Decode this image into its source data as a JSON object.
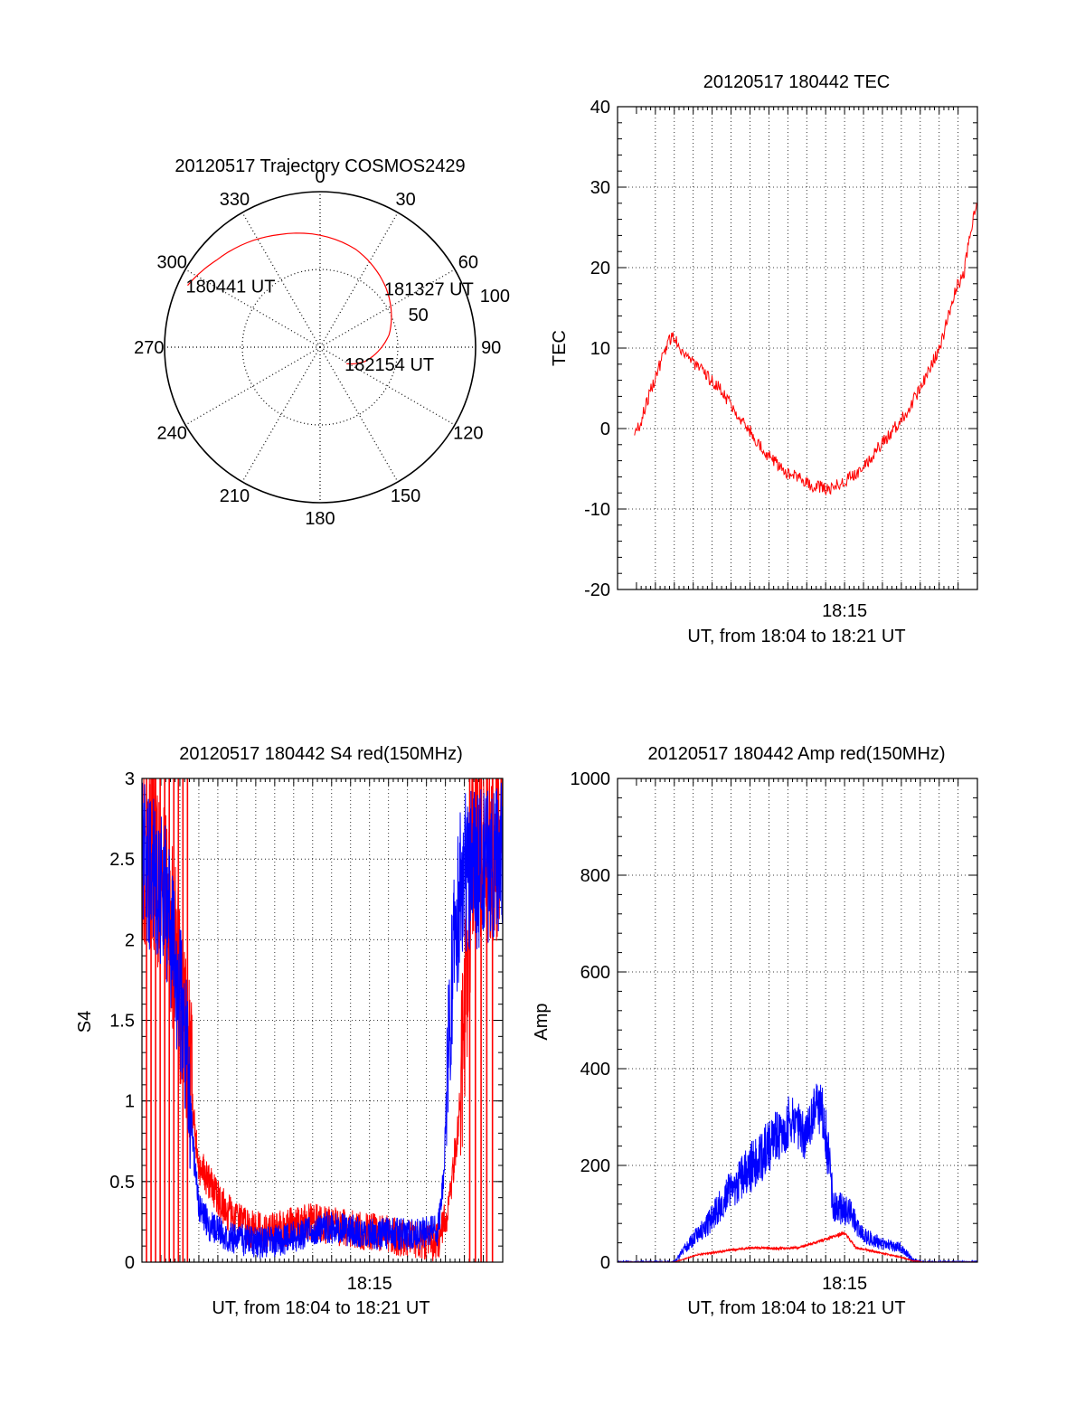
{
  "colors": {
    "red": "#ff0000",
    "blue": "#0000ff",
    "axis": "#000000",
    "grid": "#000000"
  },
  "chart_data": [
    {
      "type": "polar",
      "title": "20120517 Trajectory COSMOS2429",
      "azimuth_labels": [
        "0",
        "30",
        "60",
        "90",
        "120",
        "150",
        "180",
        "210",
        "240",
        "270",
        "300",
        "330"
      ],
      "radial_labels": [
        "50",
        "100"
      ],
      "series": [
        {
          "color": "red",
          "points": [
            [
              -65,
              94
            ],
            [
              -50,
              87
            ],
            [
              -20,
              77
            ],
            [
              20,
              67
            ],
            [
              48,
              57
            ],
            [
              80,
              45
            ],
            [
              108,
              30
            ],
            [
              122,
              20
            ]
          ]
        }
      ],
      "annotations": [
        {
          "text": "180441 UT",
          "az": -65,
          "r": 94
        },
        {
          "text": "181327 UT",
          "az": 48,
          "r": 57
        },
        {
          "text": "182154 UT",
          "az": 122,
          "r": 20
        }
      ]
    },
    {
      "type": "line",
      "title": "20120517 180442 TEC",
      "xlabel": "UT, from 18:04 to 18:21 UT",
      "ylabel": "TEC",
      "xlim": [
        18.05,
        18.367
      ],
      "ylim": [
        -20,
        40
      ],
      "yticks": [
        "-20",
        "-10",
        "0",
        "10",
        "20",
        "30",
        "40"
      ],
      "xtick_labels": [
        {
          "x": 18.25,
          "label": "18:15"
        }
      ],
      "series": [
        {
          "color": "red",
          "points": [
            [
              18.065,
              -0.5
            ],
            [
              18.07,
              0.5
            ],
            [
              18.075,
              3
            ],
            [
              18.08,
              5
            ],
            [
              18.085,
              7
            ],
            [
              18.09,
              9
            ],
            [
              18.095,
              11
            ],
            [
              18.1,
              11.5
            ],
            [
              18.105,
              10
            ],
            [
              18.115,
              8.5
            ],
            [
              18.125,
              7
            ],
            [
              18.14,
              5
            ],
            [
              18.16,
              1
            ],
            [
              18.18,
              -3
            ],
            [
              18.2,
              -5.5
            ],
            [
              18.22,
              -7
            ],
            [
              18.235,
              -7.5
            ],
            [
              18.245,
              -7
            ],
            [
              18.265,
              -5
            ],
            [
              18.285,
              -1.5
            ],
            [
              18.305,
              2
            ],
            [
              18.32,
              6
            ],
            [
              18.335,
              10.5
            ],
            [
              18.345,
              16
            ],
            [
              18.35,
              18
            ],
            [
              18.355,
              19
            ],
            [
              18.36,
              24
            ],
            [
              18.367,
              28.5
            ]
          ],
          "noise": 0.8
        }
      ]
    },
    {
      "type": "line",
      "title": "20120517 180442 S4 red(150MHz)",
      "xlabel": "UT, from 18:04 to 18:21 UT",
      "ylabel": "S4",
      "xlim": [
        18.05,
        18.367
      ],
      "ylim": [
        0,
        3
      ],
      "yticks": [
        "0",
        "0.5",
        "1",
        "1.5",
        "2",
        "2.5",
        "3"
      ],
      "xtick_labels": [
        {
          "x": 18.25,
          "label": "18:15"
        }
      ],
      "series": [
        {
          "color": "red",
          "points": [
            [
              18.05,
              2.6
            ],
            [
              18.07,
              2.3
            ],
            [
              18.09,
              1.4
            ],
            [
              18.095,
              0.9
            ],
            [
              18.1,
              0.6
            ],
            [
              18.11,
              0.5
            ],
            [
              18.12,
              0.35
            ],
            [
              18.14,
              0.22
            ],
            [
              18.16,
              0.18
            ],
            [
              18.18,
              0.22
            ],
            [
              18.2,
              0.25
            ],
            [
              18.22,
              0.22
            ],
            [
              18.24,
              0.2
            ],
            [
              18.26,
              0.18
            ],
            [
              18.28,
              0.15
            ],
            [
              18.31,
              0.12
            ],
            [
              18.32,
              0.35
            ],
            [
              18.33,
              1.0
            ],
            [
              18.34,
              2.5
            ],
            [
              18.367,
              2.6
            ]
          ],
          "noise": 0.12
        },
        {
          "color": "blue",
          "points": [
            [
              18.05,
              2.5
            ],
            [
              18.07,
              2.3
            ],
            [
              18.09,
              1.3
            ],
            [
              18.095,
              0.7
            ],
            [
              18.1,
              0.35
            ],
            [
              18.11,
              0.22
            ],
            [
              18.13,
              0.15
            ],
            [
              18.15,
              0.12
            ],
            [
              18.17,
              0.13
            ],
            [
              18.19,
              0.17
            ],
            [
              18.21,
              0.22
            ],
            [
              18.23,
              0.2
            ],
            [
              18.25,
              0.18
            ],
            [
              18.27,
              0.18
            ],
            [
              18.29,
              0.17
            ],
            [
              18.31,
              0.2
            ],
            [
              18.315,
              0.5
            ],
            [
              18.32,
              1.5
            ],
            [
              18.33,
              2.4
            ],
            [
              18.367,
              2.5
            ]
          ],
          "noise": 0.1
        }
      ]
    },
    {
      "type": "line",
      "title": "20120517 180442 Amp red(150MHz)",
      "xlabel": "UT, from 18:04 to 18:21 UT",
      "ylabel": "Amp",
      "xlim": [
        18.05,
        18.367
      ],
      "ylim": [
        0,
        1000
      ],
      "yticks": [
        "0",
        "200",
        "400",
        "600",
        "800",
        "1000"
      ],
      "xtick_labels": [
        {
          "x": 18.25,
          "label": "18:15"
        }
      ],
      "series": [
        {
          "color": "blue",
          "points": [
            [
              18.05,
              0
            ],
            [
              18.1,
              0
            ],
            [
              18.11,
              30
            ],
            [
              18.13,
              80
            ],
            [
              18.15,
              150
            ],
            [
              18.17,
              200
            ],
            [
              18.19,
              260
            ],
            [
              18.205,
              300
            ],
            [
              18.215,
              250
            ],
            [
              18.225,
              330
            ],
            [
              18.232,
              300
            ],
            [
              18.24,
              120
            ],
            [
              18.255,
              100
            ],
            [
              18.265,
              60
            ],
            [
              18.28,
              40
            ],
            [
              18.3,
              30
            ],
            [
              18.31,
              5
            ],
            [
              18.32,
              0
            ],
            [
              18.367,
              0
            ]
          ],
          "noise": 55
        },
        {
          "color": "red",
          "points": [
            [
              18.05,
              0
            ],
            [
              18.1,
              0
            ],
            [
              18.12,
              15
            ],
            [
              18.15,
              25
            ],
            [
              18.17,
              30
            ],
            [
              18.19,
              28
            ],
            [
              18.21,
              30
            ],
            [
              18.23,
              45
            ],
            [
              18.25,
              60
            ],
            [
              18.26,
              30
            ],
            [
              18.28,
              20
            ],
            [
              18.3,
              10
            ],
            [
              18.31,
              3
            ],
            [
              18.32,
              0
            ],
            [
              18.367,
              0
            ]
          ],
          "noise": 12
        }
      ]
    }
  ]
}
